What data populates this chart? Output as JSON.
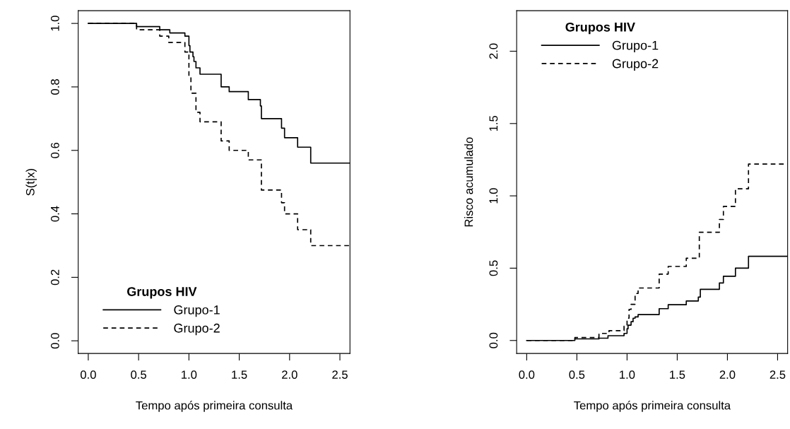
{
  "chart_data": [
    {
      "type": "step",
      "xlabel": "Tempo após primeira consulta",
      "ylabel": "S(t|x)",
      "legend_title": "Grupos HIV",
      "legend": "bottom left",
      "grid": false,
      "xlim": [
        -0.1,
        2.6
      ],
      "ylim": [
        -0.04,
        1.04
      ],
      "xticks": [
        {
          "value": 0,
          "label": "0.0"
        },
        {
          "value": 0.5,
          "label": "0.5"
        },
        {
          "value": 1,
          "label": "1.0"
        },
        {
          "value": 1.5,
          "label": "1.5"
        },
        {
          "value": 2,
          "label": "2.0"
        },
        {
          "value": 2.5,
          "label": "2.5"
        }
      ],
      "yticks": [
        {
          "value": 0,
          "label": "0.0"
        },
        {
          "value": 0.2,
          "label": "0.2"
        },
        {
          "value": 0.4,
          "label": "0.4"
        },
        {
          "value": 0.6,
          "label": "0.6"
        },
        {
          "value": 0.8,
          "label": "0.8"
        },
        {
          "value": 1,
          "label": "1.0"
        }
      ],
      "series": [
        {
          "name": "Grupo-1",
          "color": "#000000",
          "line_style": "solid",
          "x": [
            0,
            0.48,
            0.71,
            0.81,
            0.96,
            1.0,
            1.01,
            1.04,
            1.05,
            1.07,
            1.11,
            1.32,
            1.4,
            1.59,
            1.71,
            1.72,
            1.92,
            1.95,
            2.08,
            2.21,
            2.6
          ],
          "values": [
            1.0,
            0.99,
            0.98,
            0.97,
            0.96,
            0.93,
            0.91,
            0.895,
            0.88,
            0.86,
            0.84,
            0.8,
            0.785,
            0.76,
            0.74,
            0.7,
            0.67,
            0.64,
            0.61,
            0.56,
            0.56
          ]
        },
        {
          "name": "Grupo-2",
          "color": "#000000",
          "line_style": "dashed",
          "x": [
            0,
            0.48,
            0.71,
            0.8,
            0.96,
            0.99,
            1.0,
            1.02,
            1.07,
            1.11,
            1.32,
            1.4,
            1.59,
            1.72,
            1.92,
            1.95,
            2.08,
            2.21,
            2.6
          ],
          "values": [
            1.0,
            0.98,
            0.96,
            0.94,
            0.91,
            0.905,
            0.83,
            0.78,
            0.72,
            0.69,
            0.63,
            0.6,
            0.57,
            0.475,
            0.435,
            0.4,
            0.35,
            0.3,
            0.3
          ]
        }
      ]
    },
    {
      "type": "step",
      "xlabel": "Tempo após primeira consulta",
      "ylabel": "Risco acumulado",
      "legend_title": "Grupos HIV",
      "legend": "top left",
      "grid": false,
      "xlim": [
        -0.1,
        2.6
      ],
      "ylim": [
        -0.09,
        2.28
      ],
      "xticks": [
        {
          "value": 0,
          "label": "0.0"
        },
        {
          "value": 0.5,
          "label": "0.5"
        },
        {
          "value": 1,
          "label": "1.0"
        },
        {
          "value": 1.5,
          "label": "1.5"
        },
        {
          "value": 2,
          "label": "2.0"
        },
        {
          "value": 2.5,
          "label": "2.5"
        }
      ],
      "yticks": [
        {
          "value": 0,
          "label": "0.0"
        },
        {
          "value": 0.5,
          "label": "0.5"
        },
        {
          "value": 1,
          "label": "1.0"
        },
        {
          "value": 1.5,
          "label": "1.5"
        },
        {
          "value": 2,
          "label": "2.0"
        }
      ],
      "series": [
        {
          "name": "Grupo-1",
          "color": "#000000",
          "line_style": "solid",
          "x": [
            0,
            0.48,
            0.72,
            0.81,
            0.97,
            1.0,
            1.01,
            1.04,
            1.06,
            1.08,
            1.11,
            1.32,
            1.41,
            1.59,
            1.71,
            1.73,
            1.92,
            1.96,
            2.08,
            2.21,
            2.6
          ],
          "values": [
            0,
            0.011,
            0.016,
            0.033,
            0.049,
            0.081,
            0.106,
            0.13,
            0.154,
            0.163,
            0.179,
            0.22,
            0.247,
            0.273,
            0.3,
            0.354,
            0.398,
            0.444,
            0.5,
            0.582,
            0.582
          ]
        },
        {
          "name": "Grupo-2",
          "color": "#000000",
          "line_style": "dashed",
          "x": [
            0,
            0.48,
            0.72,
            0.82,
            0.97,
            1.0,
            1.02,
            1.04,
            1.08,
            1.11,
            1.32,
            1.41,
            1.59,
            1.72,
            1.92,
            1.96,
            2.08,
            2.21,
            2.6
          ],
          "values": [
            0,
            0.02,
            0.049,
            0.068,
            0.098,
            0.154,
            0.215,
            0.25,
            0.325,
            0.363,
            0.459,
            0.512,
            0.569,
            0.748,
            0.837,
            0.927,
            1.049,
            1.22,
            1.22
          ]
        }
      ]
    }
  ]
}
